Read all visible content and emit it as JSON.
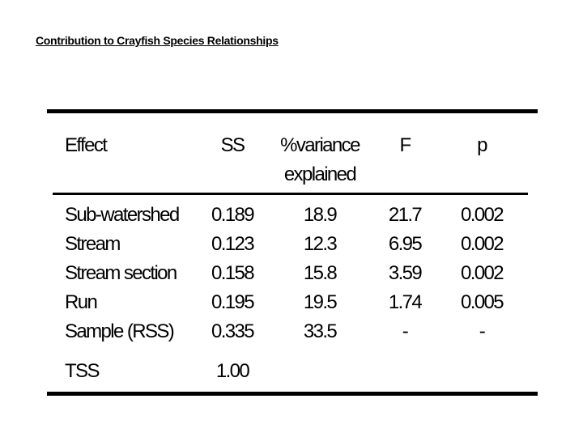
{
  "title": "Contribution to Crayfish Species Relationships",
  "table": {
    "headers": {
      "effect": "Effect",
      "ss": "SS",
      "variance_line1": "%variance",
      "variance_line2": "explained",
      "f": "F",
      "p": "p"
    },
    "rows": [
      {
        "effect": "Sub-watershed",
        "ss": "0.189",
        "variance": "18.9",
        "f": "21.7",
        "p": "0.002"
      },
      {
        "effect": "Stream",
        "ss": "0.123",
        "variance": "12.3",
        "f": "6.95",
        "p": "0.002"
      },
      {
        "effect": "Stream section",
        "ss": "0.158",
        "variance": "15.8",
        "f": "3.59",
        "p": "0.002"
      },
      {
        "effect": "Run",
        "ss": "0.195",
        "variance": "19.5",
        "f": "1.74",
        "p": "0.005"
      },
      {
        "effect": "Sample (RSS)",
        "ss": "0.335",
        "variance": "33.5",
        "f": "-",
        "p": "-"
      }
    ],
    "total": {
      "effect": "TSS",
      "ss": "1.00"
    }
  }
}
